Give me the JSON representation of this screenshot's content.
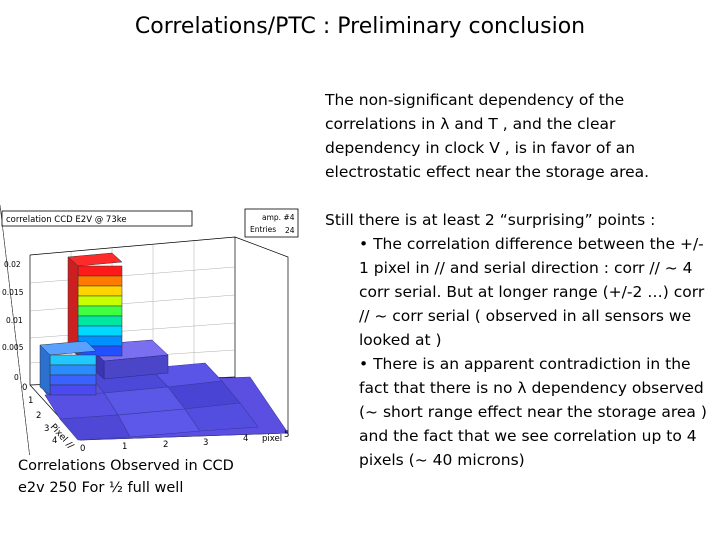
{
  "slide": {
    "title": "Correlations/PTC : Preliminary conclusion",
    "paragraph1": "The non-significant dependency of the correlations in λ and T , and the clear dependency in clock V , is in favor of an electrostatic effect near the storage area.",
    "paragraph2_intro": "Still there is at least 2 “surprising” points :",
    "bullets": [
      "• The correlation difference between the +/- 1 pixel in // and serial direction :   corr //  ~ 4 corr serial. But at longer range (+/-2 …)  corr // ~ corr serial ( observed in all sensors we looked at )",
      "• There is an apparent contradiction in the fact that  there is no  λ dependency observed (~ short range effect near the storage area ) and the fact that we see correlation up to 4 pixels (~ 40 microns)"
    ],
    "caption": "Correlations  Observed in CCD e2v 250   For ½ full well"
  },
  "plot": {
    "title": "correlation CCD E2V @ 73ke",
    "stats_label1": "amp. #4",
    "stats_label2": "Entries",
    "stats_value": "24",
    "z_ticks": [
      "0.02",
      "0.015",
      "0.01",
      "0.005",
      "0"
    ],
    "x_ticks": [
      "0",
      "1",
      "2",
      "3",
      "4",
      "5"
    ],
    "y_ticks": [
      "0",
      "1",
      "2",
      "3",
      "4"
    ],
    "x_axis_label": "pixel",
    "y_axis_label": "Pixel //"
  }
}
